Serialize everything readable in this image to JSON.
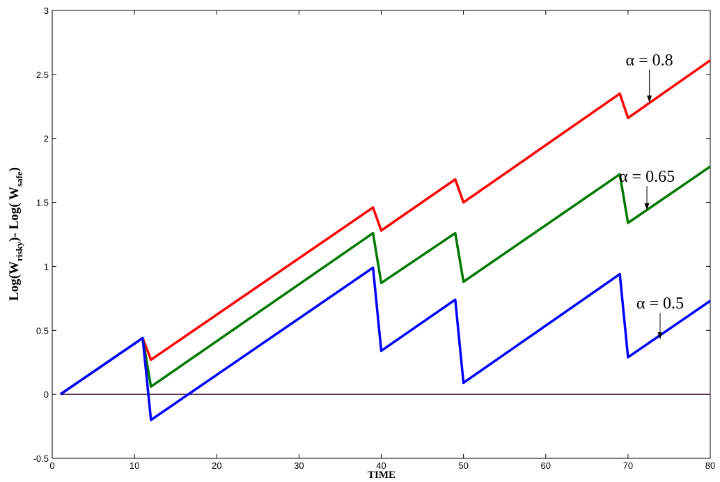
{
  "chart_data": {
    "type": "line",
    "xlabel": "TIME",
    "ylabel": {
      "prefix": "Log(W",
      "sub1": "risky",
      "middle": ")- Log( W",
      "sub2": "safe",
      "suffix": ")"
    },
    "xlim": [
      0,
      80
    ],
    "ylim": [
      -0.5,
      3
    ],
    "xticks": [
      0,
      10,
      20,
      30,
      40,
      50,
      60,
      70,
      80
    ],
    "xtick_labels": [
      "0",
      "10",
      "20",
      "30",
      "40",
      "50",
      "60",
      "70",
      "80"
    ],
    "yticks": [
      -0.5,
      0,
      0.5,
      1,
      1.5,
      2,
      2.5,
      3
    ],
    "ytick_labels": [
      "-0.5",
      "0",
      "0.5",
      "1",
      "1.5",
      "2",
      "2.5",
      "3"
    ],
    "grid": false,
    "reference_line": {
      "y": 0,
      "color": "#4b0f3c"
    },
    "series": [
      {
        "color": "#ff0000",
        "x": [
          1,
          11,
          12,
          39,
          40,
          49,
          50,
          69,
          70,
          80
        ],
        "y": [
          0,
          0.44,
          0.27,
          1.46,
          1.28,
          1.68,
          1.5,
          2.35,
          2.16,
          2.61
        ]
      },
      {
        "color": "#007800",
        "x": [
          1,
          11,
          12,
          39,
          40,
          49,
          50,
          69,
          70,
          80
        ],
        "y": [
          0,
          0.44,
          0.06,
          1.26,
          0.87,
          1.26,
          0.88,
          1.72,
          1.34,
          1.78
        ]
      },
      {
        "color": "#0000ff",
        "x": [
          1,
          11,
          12,
          39,
          40,
          49,
          50,
          69,
          70,
          80
        ],
        "y": [
          0,
          0.44,
          -0.2,
          0.99,
          0.34,
          0.74,
          0.09,
          0.94,
          0.29,
          0.73
        ]
      }
    ],
    "annotations": [
      {
        "text": "α = 0.8",
        "x": 72.6,
        "y": 2.57,
        "arrow_to": [
          72.6,
          2.28
        ]
      },
      {
        "text": "α = 0.65",
        "x": 72.3,
        "y": 1.66,
        "arrow_to": [
          72.3,
          1.44
        ]
      },
      {
        "text": "α = 0.5",
        "x": 73.9,
        "y": 0.67,
        "arrow_to": [
          73.9,
          0.43
        ]
      }
    ]
  }
}
